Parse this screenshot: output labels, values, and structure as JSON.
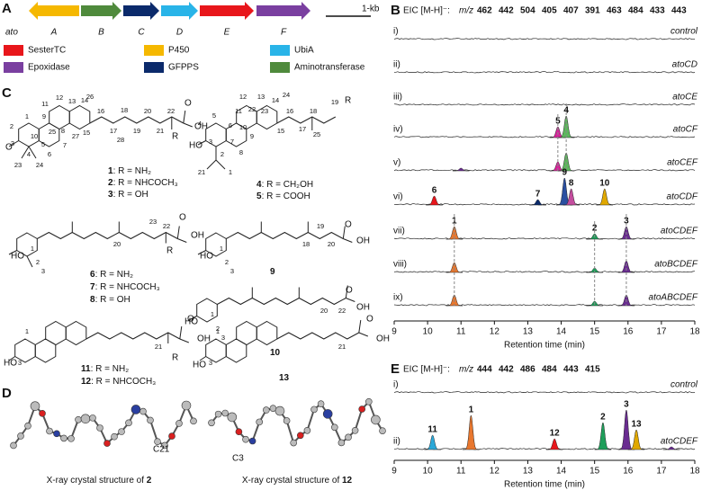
{
  "panel_a": {
    "label": "A",
    "cluster": "ato",
    "scale": "1-kb",
    "genes": [
      {
        "name": "A",
        "color": "#f5b800"
      },
      {
        "name": "B",
        "color": "#4f8a3c"
      },
      {
        "name": "C",
        "color": "#0b2a6b"
      },
      {
        "name": "D",
        "color": "#29b4e8"
      },
      {
        "name": "E",
        "color": "#e8161b"
      },
      {
        "name": "F",
        "color": "#7a3fa0"
      }
    ],
    "legend": [
      {
        "name": "SesterTC",
        "color": "#e8161b"
      },
      {
        "name": "P450",
        "color": "#f5b800"
      },
      {
        "name": "UbiA",
        "color": "#29b4e8"
      },
      {
        "name": "Epoxidase",
        "color": "#7a3fa0"
      },
      {
        "name": "GFPPS",
        "color": "#0b2a6b"
      },
      {
        "name": "Aminotransferase",
        "color": "#4f8a3c"
      }
    ]
  },
  "panel_b": {
    "label": "B",
    "eic": "EIC [M-H]⁻:",
    "mz_label": "m/z",
    "mz": [
      {
        "value": 462,
        "color": "#e8161b"
      },
      {
        "value": 442,
        "color": "#e8772e"
      },
      {
        "value": 504,
        "color": "#0b2a6b"
      },
      {
        "value": 405,
        "color": "#d6249a"
      },
      {
        "value": 407,
        "color": "#3a63b8"
      },
      {
        "value": 391,
        "color": "#8fc74a"
      },
      {
        "value": 463,
        "color": "#e9a0a8"
      },
      {
        "value": 484,
        "color": "#1e9e5a"
      },
      {
        "value": 433,
        "color": "#e0a800"
      },
      {
        "value": 443,
        "color": "#6a2c91"
      }
    ],
    "traces": [
      {
        "roman": "i)",
        "name": "control",
        "peaks": []
      },
      {
        "roman": "ii)",
        "name": "atoCD",
        "peaks": []
      },
      {
        "roman": "iii)",
        "name": "atoCE",
        "peaks": []
      },
      {
        "roman": "iv)",
        "name": "atoCF",
        "peaks": [
          {
            "label": "5",
            "rt": 13.9,
            "height": 12,
            "color": "#d6249a"
          },
          {
            "label": "4",
            "rt": 14.15,
            "height": 24,
            "color": "#5cb85c"
          }
        ]
      },
      {
        "roman": "v)",
        "name": "atoCEF",
        "peaks": [
          {
            "rt": 11.0,
            "height": 3,
            "color": "#6a2c91"
          },
          {
            "rt": 13.9,
            "height": 10,
            "color": "#d6249a"
          },
          {
            "rt": 14.15,
            "height": 20,
            "color": "#5cb85c"
          }
        ]
      },
      {
        "roman": "vi)",
        "name": "atoCDF",
        "peaks": [
          {
            "label": "6",
            "rt": 10.2,
            "height": 10,
            "color": "#e8161b"
          },
          {
            "label": "7",
            "rt": 13.3,
            "height": 6,
            "color": "#0b2a6b"
          },
          {
            "label": "9",
            "rt": 14.1,
            "height": 30,
            "color": "#2a4fa0"
          },
          {
            "label": "8",
            "rt": 14.3,
            "height": 18,
            "color": "#c44d9e"
          },
          {
            "label": "10",
            "rt": 15.3,
            "height": 18,
            "color": "#e0a800"
          }
        ]
      },
      {
        "roman": "vii)",
        "name": "atoCDEF",
        "peaks": [
          {
            "label": "1",
            "rt": 10.8,
            "height": 14,
            "color": "#e8772e"
          },
          {
            "label": "2",
            "rt": 15.0,
            "height": 6,
            "color": "#1e9e5a"
          },
          {
            "label": "3",
            "rt": 15.95,
            "height": 14,
            "color": "#6a2c91"
          }
        ]
      },
      {
        "roman": "viii)",
        "name": "atoBCDEF",
        "peaks": [
          {
            "rt": 10.8,
            "height": 11,
            "color": "#e8772e"
          },
          {
            "rt": 15.0,
            "height": 5,
            "color": "#1e9e5a"
          },
          {
            "rt": 15.95,
            "height": 13,
            "color": "#6a2c91"
          }
        ]
      },
      {
        "roman": "ix)",
        "name": "atoABCDEF",
        "peaks": [
          {
            "rt": 10.8,
            "height": 12,
            "color": "#e8772e"
          },
          {
            "rt": 15.0,
            "height": 5,
            "color": "#1e9e5a"
          },
          {
            "rt": 15.95,
            "height": 12,
            "color": "#6a2c91"
          }
        ]
      }
    ],
    "x_label": "Retention time (min)",
    "xlim": [
      9,
      18
    ],
    "xticks": [
      9,
      10,
      11,
      12,
      13,
      14,
      15,
      16,
      17,
      18
    ]
  },
  "panel_c": {
    "label": "C",
    "structures": [
      {
        "atoms": [
          "1",
          "2",
          "3",
          "4",
          "5",
          "6",
          "7",
          "8",
          "9",
          "10",
          "11",
          "12",
          "13",
          "14",
          "15",
          "16",
          "17",
          "18",
          "19",
          "20",
          "21",
          "22",
          "23",
          "24",
          "25",
          "26",
          "27",
          "28"
        ],
        "groups": [
          "O",
          "O",
          "OH",
          "R"
        ],
        "captions": [
          {
            "id": "1",
            "text": ": R = NH₂"
          },
          {
            "id": "2",
            "text": ": R = NHCOCH₃"
          },
          {
            "id": "3",
            "text": ": R = OH"
          }
        ]
      },
      {
        "atoms": [
          "1",
          "2",
          "3",
          "4",
          "5",
          "6",
          "7",
          "8",
          "9",
          "10",
          "11",
          "12",
          "13",
          "14",
          "15",
          "16",
          "17",
          "18",
          "19",
          "21",
          "22",
          "23",
          "24",
          "25"
        ],
        "groups": [
          "HO",
          "R"
        ],
        "captions": [
          {
            "id": "4",
            "text": ": R = CH₂OH"
          },
          {
            "id": "5",
            "text": ": R = COOH"
          }
        ]
      },
      {
        "atoms": [
          "1",
          "2",
          "3",
          "20",
          "22",
          "23"
        ],
        "groups": [
          "HO",
          "O",
          "OH",
          "R"
        ],
        "captions": [
          {
            "id": "6",
            "text": ": R = NH₂"
          },
          {
            "id": "7",
            "text": ": R = NHCOCH₃"
          },
          {
            "id": "8",
            "text": ": R = OH"
          }
        ]
      },
      {
        "atoms": [
          "1",
          "2",
          "3",
          "18",
          "19",
          "20"
        ],
        "groups": [
          "HO",
          "O",
          "OH"
        ],
        "captions": [
          {
            "id": "9",
            "text": ""
          }
        ]
      },
      {
        "atoms": [
          "1",
          "2",
          "3",
          "20",
          "22"
        ],
        "groups": [
          "HO",
          "O",
          "OH"
        ],
        "captions": [
          {
            "id": "10",
            "text": ""
          }
        ]
      },
      {
        "atoms": [
          "1",
          "3",
          "21"
        ],
        "groups": [
          "HO",
          "O",
          "OH",
          "R"
        ],
        "captions": [
          {
            "id": "11",
            "text": ": R = NH₂"
          },
          {
            "id": "12",
            "text": ": R = NHCOCH₃"
          }
        ]
      },
      {
        "atoms": [
          "1",
          "3",
          "21"
        ],
        "groups": [
          "HO",
          "O",
          "OH"
        ],
        "captions": [
          {
            "id": "13",
            "text": ""
          }
        ]
      }
    ]
  },
  "panel_d": {
    "label": "D",
    "structures": [
      {
        "atom": "C21",
        "caption": "X-ray crystal structure of ",
        "id": "2"
      },
      {
        "atom": "C3",
        "caption": "X-ray crystal structure of ",
        "id": "12"
      }
    ]
  },
  "panel_e": {
    "label": "E",
    "eic": "EIC [M-H]⁻:",
    "mz_label": "m/z",
    "mz": [
      {
        "value": 444,
        "color": "#2aa8d8"
      },
      {
        "value": 442,
        "color": "#e8772e"
      },
      {
        "value": 486,
        "color": "#e8161b"
      },
      {
        "value": 484,
        "color": "#1e9e5a"
      },
      {
        "value": 443,
        "color": "#6a2c91"
      },
      {
        "value": 415,
        "color": "#e0a800"
      }
    ],
    "traces": [
      {
        "roman": "i)",
        "name": "control",
        "peaks": []
      },
      {
        "roman": "ii)",
        "name": "atoCDEF",
        "peaks": [
          {
            "label": "11",
            "rt": 10.15,
            "height": 16,
            "color": "#2aa8d8"
          },
          {
            "label": "1",
            "rt": 11.3,
            "height": 38,
            "color": "#e8772e"
          },
          {
            "label": "12",
            "rt": 13.8,
            "height": 12,
            "color": "#e8161b"
          },
          {
            "label": "2",
            "rt": 15.25,
            "height": 30,
            "color": "#1e9e5a"
          },
          {
            "label": "3",
            "rt": 15.95,
            "height": 44,
            "color": "#6a2c91"
          },
          {
            "label": "13",
            "rt": 16.25,
            "height": 22,
            "color": "#e0a800"
          },
          {
            "rt": 17.3,
            "height": 3,
            "color": "#6a2c91"
          }
        ]
      }
    ],
    "x_label": "Retention time (min)",
    "xlim": [
      9,
      18
    ],
    "xticks": [
      9,
      10,
      11,
      12,
      13,
      14,
      15,
      16,
      17,
      18
    ]
  }
}
